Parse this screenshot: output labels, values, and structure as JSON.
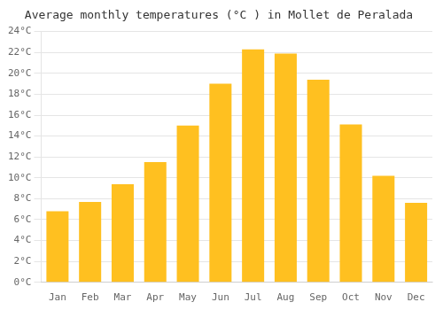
{
  "chart_data": {
    "type": "bar",
    "title": "Average monthly temperatures (°C ) in Mollet de Peralada",
    "categories": [
      "Jan",
      "Feb",
      "Mar",
      "Apr",
      "May",
      "Jun",
      "Jul",
      "Aug",
      "Sep",
      "Oct",
      "Nov",
      "Dec"
    ],
    "values": [
      6.8,
      7.7,
      9.4,
      11.5,
      15.0,
      19.0,
      22.3,
      21.9,
      19.4,
      15.1,
      10.2,
      7.6
    ],
    "color": "#FFC020",
    "ylim": [
      0,
      24
    ],
    "yticks": [
      {
        "value": 0,
        "label": "0°C"
      },
      {
        "value": 2,
        "label": "2°C"
      },
      {
        "value": 4,
        "label": "4°C"
      },
      {
        "value": 6,
        "label": "6°C"
      },
      {
        "value": 8,
        "label": "8°C"
      },
      {
        "value": 10,
        "label": "10°C"
      },
      {
        "value": 12,
        "label": "12°C"
      },
      {
        "value": 14,
        "label": "14°C"
      },
      {
        "value": 16,
        "label": "16°C"
      },
      {
        "value": 18,
        "label": "18°C"
      },
      {
        "value": 20,
        "label": "20°C"
      },
      {
        "value": 22,
        "label": "22°C"
      },
      {
        "value": 24,
        "label": "24°C"
      }
    ],
    "grid": true
  }
}
